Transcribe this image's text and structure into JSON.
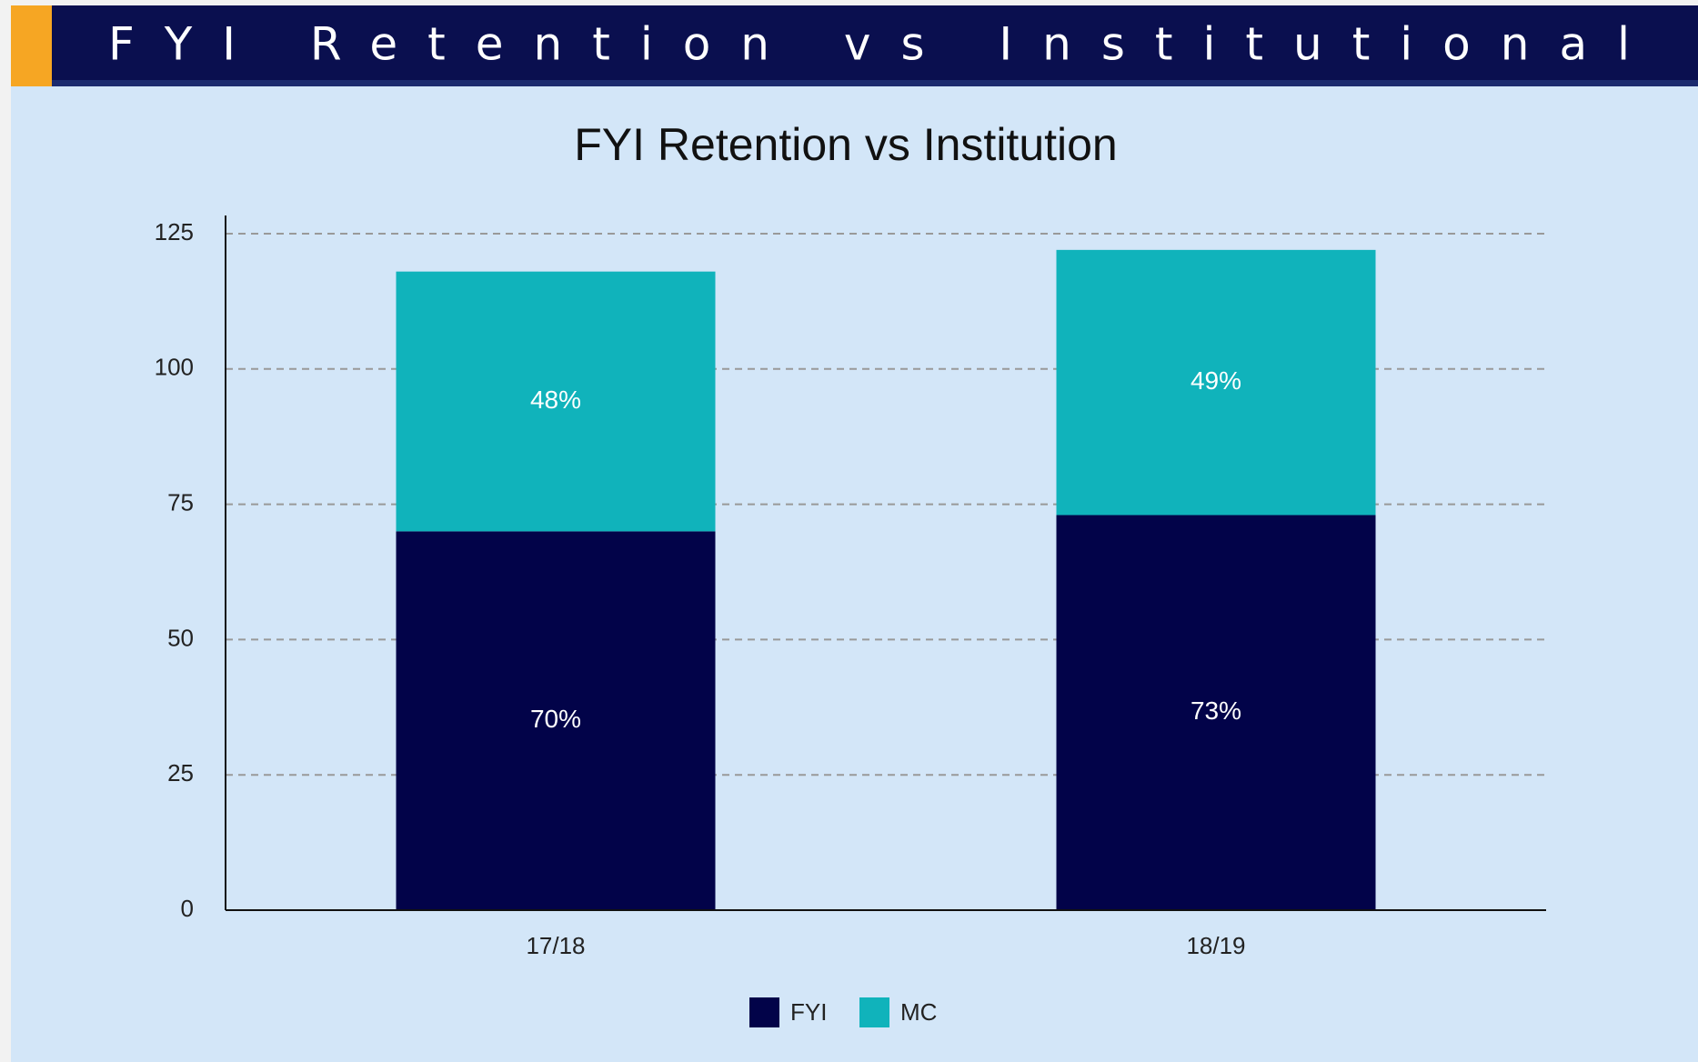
{
  "header": {
    "title": "FYI Retention vs Institutional"
  },
  "chart_data": {
    "type": "stacked_bar",
    "title": "FYI Retention vs Institution",
    "categories": [
      "17/18",
      "18/19"
    ],
    "series": [
      {
        "name": "FYI",
        "color": "#020349",
        "values": [
          70,
          73
        ],
        "value_labels": [
          "70%",
          "73%"
        ]
      },
      {
        "name": "MC",
        "color": "#10b3bb",
        "values": [
          48,
          49
        ],
        "value_labels": [
          "48%",
          "49%"
        ]
      }
    ],
    "ylim": [
      0,
      125
    ],
    "yticks": [
      0,
      25,
      50,
      75,
      100,
      125
    ],
    "grid": true,
    "legend": "bottom"
  }
}
